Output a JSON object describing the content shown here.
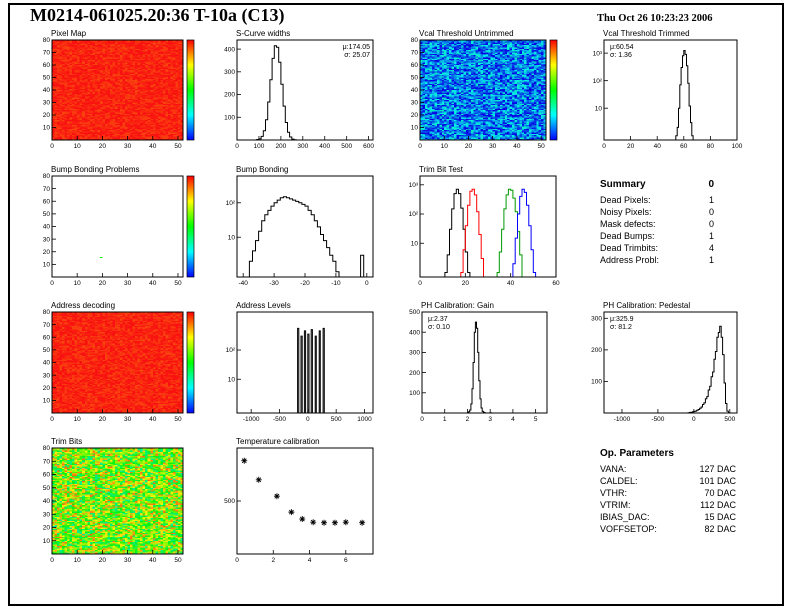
{
  "page": {
    "title": "M0214-061025.20:36 T-10a (C13)",
    "timestamp": "Thu Oct 26 10:23:23 2006"
  },
  "summary": {
    "heading": "Summary",
    "heading_value": "0",
    "rows": [
      [
        "Dead Pixels:",
        "1"
      ],
      [
        "Noisy Pixels:",
        "0"
      ],
      [
        "Mask defects:",
        "0"
      ],
      [
        "Dead Bumps:",
        "1"
      ],
      [
        "Dead Trimbits:",
        "4"
      ],
      [
        "Address Probl:",
        "1"
      ]
    ]
  },
  "op_parameters": {
    "heading": "Op. Parameters",
    "rows": [
      [
        "VANA:",
        "127 DAC"
      ],
      [
        "CALDEL:",
        "101 DAC"
      ],
      [
        "VTHR:",
        "70 DAC"
      ],
      [
        "VTRIM:",
        "112 DAC"
      ],
      [
        "IBIAS_DAC:",
        "15 DAC"
      ],
      [
        "VOFFSETOP:",
        "82 DAC"
      ]
    ]
  },
  "chart_data": [
    {
      "id": "pixel_map",
      "type": "heatmap",
      "title": "Pixel Map",
      "xlim": [
        0,
        52
      ],
      "ylim": [
        0,
        80
      ],
      "xticks": [
        0,
        10,
        20,
        30,
        40,
        50
      ],
      "yticks": [
        10,
        20,
        30,
        40,
        50,
        60,
        70,
        80
      ],
      "nx": 52,
      "ny": 80,
      "pattern": "noise",
      "base_value": 0.98,
      "noise": 0.04,
      "seed": 1,
      "colorbar": true
    },
    {
      "id": "s_curve",
      "type": "histogram",
      "title": "S-Curve widths",
      "xlim": [
        0,
        620
      ],
      "ylim": [
        0,
        440
      ],
      "xticks": [
        0,
        100,
        200,
        300,
        400,
        500,
        600
      ],
      "yticks": [
        100,
        200,
        300,
        400
      ],
      "bin_width": 10,
      "stats": {
        "mu_label": "μ:174.05",
        "sigma_label": "σ: 25.07",
        "pos": "right"
      },
      "bins": [
        [
          90,
          2
        ],
        [
          100,
          5
        ],
        [
          110,
          16
        ],
        [
          120,
          41
        ],
        [
          130,
          89
        ],
        [
          140,
          167
        ],
        [
          150,
          265
        ],
        [
          160,
          359
        ],
        [
          170,
          415
        ],
        [
          180,
          408
        ],
        [
          190,
          342
        ],
        [
          200,
          245
        ],
        [
          210,
          149
        ],
        [
          220,
          77
        ],
        [
          230,
          34
        ],
        [
          240,
          13
        ],
        [
          250,
          4
        ],
        [
          260,
          1
        ]
      ]
    },
    {
      "id": "vcal_untrimmed",
      "type": "heatmap",
      "title": "Vcal Threshold Untrimmed",
      "xlim": [
        0,
        52
      ],
      "ylim": [
        0,
        80
      ],
      "xticks": [
        0,
        10,
        20,
        30,
        40,
        50
      ],
      "yticks": [
        10,
        20,
        30,
        40,
        50,
        60,
        70,
        80
      ],
      "nx": 52,
      "ny": 80,
      "pattern": "noise",
      "base_value": 0.13,
      "noise": 0.17,
      "seed": 2,
      "colorbar": true
    },
    {
      "id": "vcal_trimmed",
      "type": "histogram",
      "logy": true,
      "title": "Vcal Threshold Trimmed",
      "xlim": [
        0,
        100
      ],
      "ylim": [
        0.7,
        3000
      ],
      "xticks": [
        0,
        20,
        40,
        60,
        80,
        100
      ],
      "yticks": [
        10,
        100,
        1000
      ],
      "bin_width": 1,
      "stats": {
        "mu_label": "μ:60.54",
        "sigma_label": "σ: 1.36",
        "pos": "left"
      },
      "bins": [
        [
          54,
          1
        ],
        [
          55,
          2
        ],
        [
          56,
          10
        ],
        [
          57,
          70
        ],
        [
          58,
          300
        ],
        [
          59,
          800
        ],
        [
          60,
          1250
        ],
        [
          61,
          900
        ],
        [
          62,
          350
        ],
        [
          63,
          80
        ],
        [
          64,
          12
        ],
        [
          65,
          3
        ],
        [
          66,
          1
        ]
      ]
    },
    {
      "id": "bump_problems",
      "type": "heatmap",
      "title": "Bump Bonding Problems",
      "xlim": [
        0,
        52
      ],
      "ylim": [
        0,
        80
      ],
      "xticks": [
        0,
        10,
        20,
        30,
        40,
        50
      ],
      "yticks": [
        10,
        20,
        30,
        40,
        50,
        60,
        70,
        80
      ],
      "nx": 52,
      "ny": 80,
      "pattern": "sparse",
      "cells": [
        [
          19,
          15,
          0.5
        ]
      ],
      "seed": 3,
      "colorbar": true
    },
    {
      "id": "bump_bonding",
      "type": "histogram",
      "logy": true,
      "title": "Bump Bonding",
      "xlim": [
        -42,
        2
      ],
      "ylim": [
        0.7,
        600
      ],
      "xticks": [
        -40,
        -30,
        -20,
        -10,
        0
      ],
      "yticks": [
        10,
        100
      ],
      "bin_width": 1,
      "bins": [
        [
          -38,
          2
        ],
        [
          -37,
          4
        ],
        [
          -36,
          8
        ],
        [
          -35,
          15
        ],
        [
          -34,
          30
        ],
        [
          -33,
          45
        ],
        [
          -32,
          60
        ],
        [
          -31,
          80
        ],
        [
          -30,
          100
        ],
        [
          -29,
          120
        ],
        [
          -28,
          140
        ],
        [
          -27,
          150
        ],
        [
          -26,
          140
        ],
        [
          -25,
          130
        ],
        [
          -24,
          120
        ],
        [
          -23,
          110
        ],
        [
          -22,
          100
        ],
        [
          -21,
          90
        ],
        [
          -20,
          80
        ],
        [
          -19,
          60
        ],
        [
          -18,
          45
        ],
        [
          -17,
          30
        ],
        [
          -16,
          20
        ],
        [
          -15,
          12
        ],
        [
          -14,
          8
        ],
        [
          -13,
          5
        ],
        [
          -12,
          3
        ],
        [
          -11,
          2
        ],
        [
          -10,
          1
        ],
        [
          -2,
          3
        ]
      ]
    },
    {
      "id": "trim_bit_test",
      "type": "multi-histogram",
      "logy": true,
      "title": "Trim Bit Test",
      "xlim": [
        0,
        60
      ],
      "ylim": [
        0.7,
        2000
      ],
      "xticks": [
        0,
        20,
        40,
        60
      ],
      "yticks": [
        10,
        100,
        1000
      ],
      "bin_width": 1,
      "series": [
        {
          "color": "#000000",
          "bins": [
            [
              11,
              1
            ],
            [
              12,
              4
            ],
            [
              13,
              30
            ],
            [
              14,
              150
            ],
            [
              15,
              500
            ],
            [
              16,
              700
            ],
            [
              17,
              500
            ],
            [
              18,
              160
            ],
            [
              19,
              30
            ],
            [
              20,
              5
            ],
            [
              21,
              1
            ]
          ]
        },
        {
          "color": "#ff0000",
          "bins": [
            [
              18,
              1
            ],
            [
              19,
              6
            ],
            [
              20,
              40
            ],
            [
              21,
              200
            ],
            [
              22,
              600
            ],
            [
              23,
              700
            ],
            [
              24,
              450
            ],
            [
              25,
              120
            ],
            [
              26,
              20
            ],
            [
              27,
              3
            ]
          ]
        },
        {
          "color": "#009900",
          "bins": [
            [
              34,
              1
            ],
            [
              35,
              5
            ],
            [
              36,
              30
            ],
            [
              37,
              150
            ],
            [
              38,
              450
            ],
            [
              39,
              700
            ],
            [
              40,
              650
            ],
            [
              41,
              350
            ],
            [
              42,
              120
            ],
            [
              43,
              25
            ],
            [
              44,
              4
            ]
          ]
        },
        {
          "color": "#0000ff",
          "bins": [
            [
              41,
              2
            ],
            [
              42,
              15
            ],
            [
              43,
              100
            ],
            [
              44,
              400
            ],
            [
              45,
              700
            ],
            [
              46,
              550
            ],
            [
              47,
              200
            ],
            [
              48,
              40
            ],
            [
              49,
              6
            ],
            [
              50,
              1
            ]
          ]
        }
      ]
    },
    {
      "id": "address_decoding",
      "type": "heatmap",
      "title": "Address decoding",
      "xlim": [
        0,
        52
      ],
      "ylim": [
        0,
        80
      ],
      "xticks": [
        0,
        10,
        20,
        30,
        40,
        50
      ],
      "yticks": [
        10,
        20,
        30,
        40,
        50,
        60,
        70,
        80
      ],
      "nx": 52,
      "ny": 80,
      "pattern": "noise",
      "base_value": 0.98,
      "noise": 0.04,
      "seed": 4,
      "colorbar": true
    },
    {
      "id": "address_levels",
      "type": "histogram",
      "logy": true,
      "title": "Address Levels",
      "xlim": [
        -1250,
        1150
      ],
      "ylim": [
        0.7,
        2000
      ],
      "xticks": [
        -1000,
        -500,
        0,
        500,
        1000
      ],
      "yticks": [
        10,
        100
      ],
      "bin_width": 20,
      "bins": [
        [
          -180,
          550
        ],
        [
          -120,
          300
        ],
        [
          -60,
          450
        ],
        [
          0,
          350
        ],
        [
          60,
          500
        ],
        [
          130,
          300
        ],
        [
          200,
          450
        ],
        [
          270,
          550
        ]
      ]
    },
    {
      "id": "ph_gain",
      "type": "histogram",
      "title": "PH Calibration: Gain",
      "xlim": [
        0,
        5.5
      ],
      "ylim": [
        0,
        500
      ],
      "xticks": [
        0,
        1,
        2,
        3,
        4,
        5
      ],
      "yticks": [
        100,
        200,
        300,
        400,
        500
      ],
      "bin_width": 0.05,
      "stats": {
        "mu_label": "μ:2.37",
        "sigma_label": "σ: 0.10",
        "pos": "left"
      },
      "bins": [
        [
          2.0,
          2
        ],
        [
          2.05,
          6
        ],
        [
          2.1,
          15
        ],
        [
          2.15,
          45
        ],
        [
          2.2,
          120
        ],
        [
          2.25,
          250
        ],
        [
          2.3,
          400
        ],
        [
          2.35,
          450
        ],
        [
          2.4,
          420
        ],
        [
          2.45,
          300
        ],
        [
          2.5,
          160
        ],
        [
          2.55,
          70
        ],
        [
          2.6,
          25
        ],
        [
          2.65,
          8
        ],
        [
          2.7,
          3
        ],
        [
          2.75,
          1
        ],
        [
          3.0,
          1
        ]
      ]
    },
    {
      "id": "ph_pedestal",
      "type": "histogram",
      "title": "PH Calibration: Pedestal",
      "xlim": [
        -1250,
        600
      ],
      "ylim": [
        0,
        320
      ],
      "xticks": [
        -1000,
        -500,
        0,
        500
      ],
      "yticks": [
        100,
        200,
        300
      ],
      "bin_width": 20,
      "stats": {
        "mu_label": "μ:325.9",
        "sigma_label": "σ: 81.2",
        "pos": "left"
      },
      "bins": [
        [
          -80,
          1
        ],
        [
          -60,
          2
        ],
        [
          -40,
          2
        ],
        [
          -20,
          4
        ],
        [
          0,
          5
        ],
        [
          20,
          6
        ],
        [
          40,
          9
        ],
        [
          60,
          11
        ],
        [
          80,
          15
        ],
        [
          100,
          19
        ],
        [
          120,
          27
        ],
        [
          140,
          32
        ],
        [
          160,
          45
        ],
        [
          180,
          52
        ],
        [
          200,
          73
        ],
        [
          220,
          85
        ],
        [
          240,
          115
        ],
        [
          260,
          130
        ],
        [
          280,
          170
        ],
        [
          300,
          195
        ],
        [
          320,
          240
        ],
        [
          340,
          255
        ],
        [
          360,
          275
        ],
        [
          380,
          240
        ],
        [
          400,
          185
        ],
        [
          420,
          95
        ],
        [
          440,
          30
        ],
        [
          460,
          6
        ],
        [
          480,
          1
        ]
      ]
    },
    {
      "id": "trim_bits",
      "type": "heatmap",
      "title": "Trim Bits",
      "xlim": [
        0,
        52
      ],
      "ylim": [
        0,
        80
      ],
      "xticks": [
        0,
        10,
        20,
        30,
        40,
        50
      ],
      "yticks": [
        10,
        20,
        30,
        40,
        50,
        60,
        70,
        80
      ],
      "nx": 52,
      "ny": 80,
      "pattern": "noise",
      "base_value": 0.62,
      "noise": 0.28,
      "seed": 5,
      "colorbar": false
    },
    {
      "id": "temperature",
      "type": "scatter",
      "title": "Temperature calibration",
      "xlim": [
        0,
        7.5
      ],
      "ylim": [
        0,
        1000
      ],
      "xticks": [
        0,
        2,
        4,
        6
      ],
      "yticks": [
        500
      ],
      "points": [
        [
          0.4,
          880
        ],
        [
          1.2,
          700
        ],
        [
          2.2,
          545
        ],
        [
          3.0,
          395
        ],
        [
          3.6,
          330
        ],
        [
          4.2,
          300
        ],
        [
          4.8,
          295
        ],
        [
          5.4,
          295
        ],
        [
          6.0,
          300
        ],
        [
          6.9,
          295
        ]
      ]
    }
  ]
}
